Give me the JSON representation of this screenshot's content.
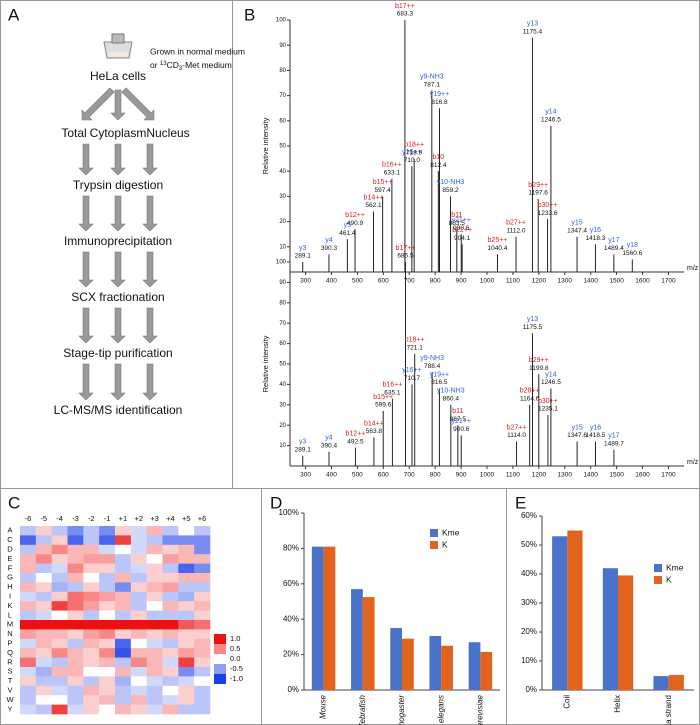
{
  "panel_labels": [
    "A",
    "B",
    "C",
    "D",
    "E"
  ],
  "workflow": {
    "source": "HeLa cells",
    "note_line1": "Grown in normal medium",
    "note_line2": [
      "or ",
      "13",
      "CD",
      "3",
      "-Met medium"
    ],
    "fractions": [
      "Total",
      "Cytoplasm",
      "Nucleus"
    ],
    "steps": [
      "Trypsin digestion",
      "Immunoprecipitation",
      "SCX fractionation",
      "Stage-tip purification",
      "LC-MS/MS identification"
    ]
  },
  "chart_data": [
    {
      "type": "spectrum",
      "xlabel": "m/z",
      "ylabel": "Relative intensity",
      "xlim": [
        240,
        1760
      ],
      "ylim": [
        0,
        100
      ],
      "xticks": [
        300,
        400,
        500,
        600,
        700,
        800,
        900,
        1000,
        1100,
        1200,
        1300,
        1400,
        1500,
        1600,
        1700
      ],
      "yticks": [
        10,
        20,
        30,
        40,
        50,
        60,
        70,
        80,
        90,
        100
      ],
      "labels": [
        "y3",
        "y4",
        "y5",
        "b12++",
        "b14++",
        "b15++",
        "b16++",
        "b17++",
        "y16++",
        "b18++",
        "y9-NH3",
        "b10",
        "y19++",
        "y10-NH3",
        "b11",
        "y21++",
        "b22++",
        "b25++",
        "b27++",
        "y13",
        "b29++",
        "b30++",
        "y14",
        "y15",
        "y16",
        "y17",
        "y18"
      ],
      "x": [
        289.1,
        390.3,
        461.4,
        490.9,
        562.1,
        597.4,
        633.1,
        683.3,
        710.0,
        718.9,
        787.1,
        812.4,
        816.8,
        859.2,
        883.5,
        900.6,
        904.1,
        1040.4,
        1112.0,
        1175.4,
        1197.6,
        1233.6,
        1246.5,
        1347.4,
        1418.3,
        1489.4,
        1560.6
      ],
      "x_labels": [
        "289.1",
        "390.3",
        "461.4",
        "490.9",
        "562.1",
        "597.4",
        "633.1",
        "683.3",
        "710.0",
        "718.9",
        "787.1",
        "812.4",
        "816.8",
        "859.2",
        "883.5",
        "900.6",
        "904.1",
        "1040.4",
        "1112.0",
        "1175.4",
        "1197.6",
        "1233.6",
        "1246.5",
        "1347.4",
        "1418.3",
        "1489.4",
        "1560.6"
      ],
      "values": [
        4,
        7,
        13,
        17,
        24,
        30,
        37,
        100,
        42,
        45,
        72,
        40,
        65,
        30,
        17,
        15,
        11,
        7,
        14,
        93,
        29,
        21,
        58,
        14,
        11,
        7,
        5
      ],
      "colors": [
        "#2f63d0",
        "#2f63d0",
        "#2f63d0",
        "#d42020",
        "#d42020",
        "#d42020",
        "#d42020",
        "#d42020",
        "#2f63d0",
        "#d42020",
        "#2f63d0",
        "#d42020",
        "#2f63d0",
        "#2f63d0",
        "#d42020",
        "#2f63d0",
        "#d42020",
        "#d42020",
        "#d42020",
        "#2f63d0",
        "#d42020",
        "#d42020",
        "#2f63d0",
        "#2f63d0",
        "#2f63d0",
        "#2f63d0",
        "#2f63d0"
      ]
    },
    {
      "type": "spectrum",
      "xlabel": "m/z",
      "ylabel": "Relative intensity",
      "xlim": [
        240,
        1760
      ],
      "ylim": [
        0,
        100
      ],
      "xticks": [
        300,
        400,
        500,
        600,
        700,
        800,
        900,
        1000,
        1100,
        1200,
        1300,
        1400,
        1500,
        1600,
        1700
      ],
      "yticks": [
        10,
        20,
        30,
        40,
        50,
        60,
        70,
        80,
        90,
        100
      ],
      "labels": [
        "y3",
        "y4",
        "b12++",
        "b14++",
        "b15++",
        "b16++",
        "b17++",
        "y16++",
        "b18++",
        "y9-NH3",
        "y19++",
        "y10-NH3",
        "b11",
        "y21++",
        "b27++",
        "b28++",
        "y13",
        "b29++",
        "b30++",
        "y14",
        "y15",
        "y16",
        "y17"
      ],
      "x": [
        289.1,
        390.4,
        492.5,
        563.8,
        599.6,
        635.1,
        685.5,
        710.7,
        721.1,
        788.4,
        816.5,
        860.4,
        887.5,
        900.6,
        1114.0,
        1164.6,
        1175.5,
        1199.8,
        1235.1,
        1246.5,
        1347.6,
        1418.5,
        1489.7
      ],
      "x_labels": [
        "289.1",
        "390.4",
        "492.5",
        "563.8",
        "599.6",
        "635.1",
        "685.5",
        "710.7",
        "721.1",
        "788.4",
        "816.5",
        "860.4",
        "887.5",
        "900.6",
        "1114.0",
        "1164.6",
        "1175.5",
        "1199.8",
        "1235.1",
        "1246.5",
        "1347.6",
        "1418.5",
        "1489.7"
      ],
      "values": [
        5,
        7,
        9,
        14,
        27,
        33,
        100,
        40,
        55,
        46,
        38,
        30,
        20,
        15,
        12,
        30,
        65,
        45,
        25,
        38,
        12,
        12,
        8
      ],
      "colors": [
        "#2f63d0",
        "#2f63d0",
        "#d42020",
        "#d42020",
        "#d42020",
        "#d42020",
        "#d42020",
        "#2f63d0",
        "#d42020",
        "#2f63d0",
        "#2f63d0",
        "#2f63d0",
        "#d42020",
        "#2f63d0",
        "#d42020",
        "#d42020",
        "#2f63d0",
        "#d42020",
        "#d42020",
        "#2f63d0",
        "#2f63d0",
        "#2f63d0",
        "#2f63d0"
      ]
    },
    {
      "type": "heatmap",
      "x": [
        "-6",
        "-5",
        "-4",
        "-3",
        "-2",
        "-1",
        "+1",
        "+2",
        "+3",
        "+4",
        "+5",
        "+6"
      ],
      "y": [
        "A",
        "C",
        "D",
        "E",
        "F",
        "G",
        "H",
        "I",
        "K",
        "L",
        "M",
        "N",
        "P",
        "Q",
        "R",
        "S",
        "T",
        "V",
        "W",
        "Y"
      ],
      "clim": [
        -1,
        1
      ],
      "colors": [
        "#1b3fe8",
        "#ffffff",
        "#ee1010"
      ],
      "cticks": [
        {
          "value": 1,
          "label": "1.0"
        },
        {
          "value": 0.5,
          "label": "0.5"
        },
        {
          "value": 0,
          "label": "0.0"
        },
        {
          "value": -0.5,
          "label": "-0.5"
        },
        {
          "value": -1,
          "label": "-1.0"
        }
      ],
      "values": [
        [
          -0.3,
          0.2,
          -0.3,
          -0.6,
          -0.3,
          -0.6,
          0.2,
          -0.2,
          0.3,
          -0.3,
          0,
          -0.3
        ],
        [
          -0.8,
          -0.3,
          0.2,
          -0.8,
          -0.3,
          -0.8,
          0.8,
          -0.2,
          -0.3,
          -0.6,
          -0.6,
          -0.6
        ],
        [
          -0.3,
          0.3,
          0.5,
          0.3,
          0.3,
          -0.2,
          0,
          -0.2,
          0.3,
          0.2,
          0.3,
          -0.6
        ],
        [
          0.3,
          0.5,
          0.2,
          0.3,
          0.4,
          0.4,
          -0.3,
          0.2,
          0,
          0.4,
          0.3,
          0.3
        ],
        [
          0.3,
          -0.3,
          -0.2,
          0.5,
          0.2,
          0.2,
          -0.3,
          -0.2,
          0.2,
          -0.3,
          -0.8,
          -0.6
        ],
        [
          -0.3,
          0,
          -0.3,
          0.3,
          0,
          -0.3,
          0.3,
          -0.3,
          0.2,
          0.2,
          0.3,
          0.3
        ],
        [
          0.3,
          0.2,
          -0.4,
          -0.3,
          0.2,
          -0.3,
          -0.6,
          0.2,
          0.3,
          0.4,
          -0.3,
          -0.3
        ],
        [
          -0.2,
          -0.3,
          0.2,
          0.6,
          0.5,
          0.4,
          0.3,
          -0.3,
          0.2,
          -0.3,
          -0.4,
          0.2
        ],
        [
          0.3,
          0.2,
          0.8,
          0.6,
          0.4,
          0.2,
          0.3,
          -0.3,
          0,
          0.3,
          0.2,
          0.3
        ],
        [
          -0.3,
          -0.2,
          0,
          0.2,
          -0.3,
          0,
          -0.3,
          0.2,
          -0.3,
          -0.3,
          -0.3,
          0.2
        ],
        [
          1,
          1,
          1,
          1,
          1,
          1,
          1,
          1,
          1,
          1,
          0.7,
          0.6
        ],
        [
          0.4,
          0.3,
          0.3,
          0.2,
          0.4,
          0.5,
          0.2,
          0.3,
          0.2,
          0.3,
          0.2,
          0.2
        ],
        [
          -0.2,
          0.3,
          0.2,
          -0.3,
          0.3,
          0.2,
          -0.8,
          0,
          -0.2,
          -0.3,
          0.2,
          0.3
        ],
        [
          0.3,
          0.2,
          0.5,
          0.3,
          0.2,
          0.5,
          -0.9,
          0.3,
          0.3,
          0.2,
          0.4,
          0.3
        ],
        [
          0.6,
          -0.2,
          -0.3,
          0.3,
          0.2,
          0.3,
          -0.3,
          0.5,
          0.3,
          -0.2,
          0.8,
          0.2
        ],
        [
          -0.2,
          -0.4,
          0.3,
          0.3,
          0,
          0,
          0.3,
          -0.2,
          0.3,
          0.2,
          -0.6,
          -0.3
        ],
        [
          0.2,
          -0.3,
          -0.3,
          0.2,
          -0.3,
          0.2,
          -0.4,
          0,
          -0.2,
          -0.3,
          -0.2,
          0
        ],
        [
          -0.3,
          0.2,
          -0.2,
          -0.3,
          0.3,
          0.2,
          -0.3,
          -0.2,
          -0.3,
          0,
          0.2,
          -0.3
        ],
        [
          -0.3,
          0,
          0,
          -0.3,
          0.2,
          0.3,
          -0.3,
          0.3,
          -0.3,
          -0.2,
          0.2,
          -0.3
        ],
        [
          -0.2,
          -0.3,
          0.8,
          -0.2,
          0.2,
          0,
          0.3,
          0.2,
          -0.2,
          0.3,
          -0.3,
          -0.3
        ]
      ]
    },
    {
      "type": "bar",
      "categories": [
        "Mouse",
        "Zebrafish",
        "D. melanogaster",
        "C. elegans",
        "S. cerevisiae"
      ],
      "italic_categories": true,
      "series": [
        {
          "name": "Kme",
          "color": "#4a72c8",
          "values": [
            81,
            57,
            35,
            30.5,
            27
          ]
        },
        {
          "name": "K",
          "color": "#e2631c",
          "values": [
            81,
            52.5,
            29,
            25,
            21.5
          ]
        }
      ],
      "ylim": [
        0,
        100
      ],
      "yticks": [
        {
          "value": 0,
          "label": "0%"
        },
        {
          "value": 20,
          "label": "20%"
        },
        {
          "value": 40,
          "label": "40%"
        },
        {
          "value": 60,
          "label": "60%"
        },
        {
          "value": 80,
          "label": "80%"
        },
        {
          "value": 100,
          "label": "100%"
        }
      ],
      "legend": "upper right"
    },
    {
      "type": "bar",
      "categories": [
        "Coil",
        "Helix",
        "Beta strand"
      ],
      "italic_categories": false,
      "series": [
        {
          "name": "Kme",
          "color": "#4a72c8",
          "values": [
            53,
            42,
            4.8
          ]
        },
        {
          "name": "K",
          "color": "#e2631c",
          "values": [
            55,
            39.5,
            5.2
          ]
        }
      ],
      "ylim": [
        0,
        60
      ],
      "yticks": [
        {
          "value": 0,
          "label": "0%"
        },
        {
          "value": 10,
          "label": "10%"
        },
        {
          "value": 20,
          "label": "20%"
        },
        {
          "value": 30,
          "label": "30%"
        },
        {
          "value": 40,
          "label": "40%"
        },
        {
          "value": 50,
          "label": "50%"
        },
        {
          "value": 60,
          "label": "60%"
        }
      ],
      "legend": "right"
    }
  ]
}
